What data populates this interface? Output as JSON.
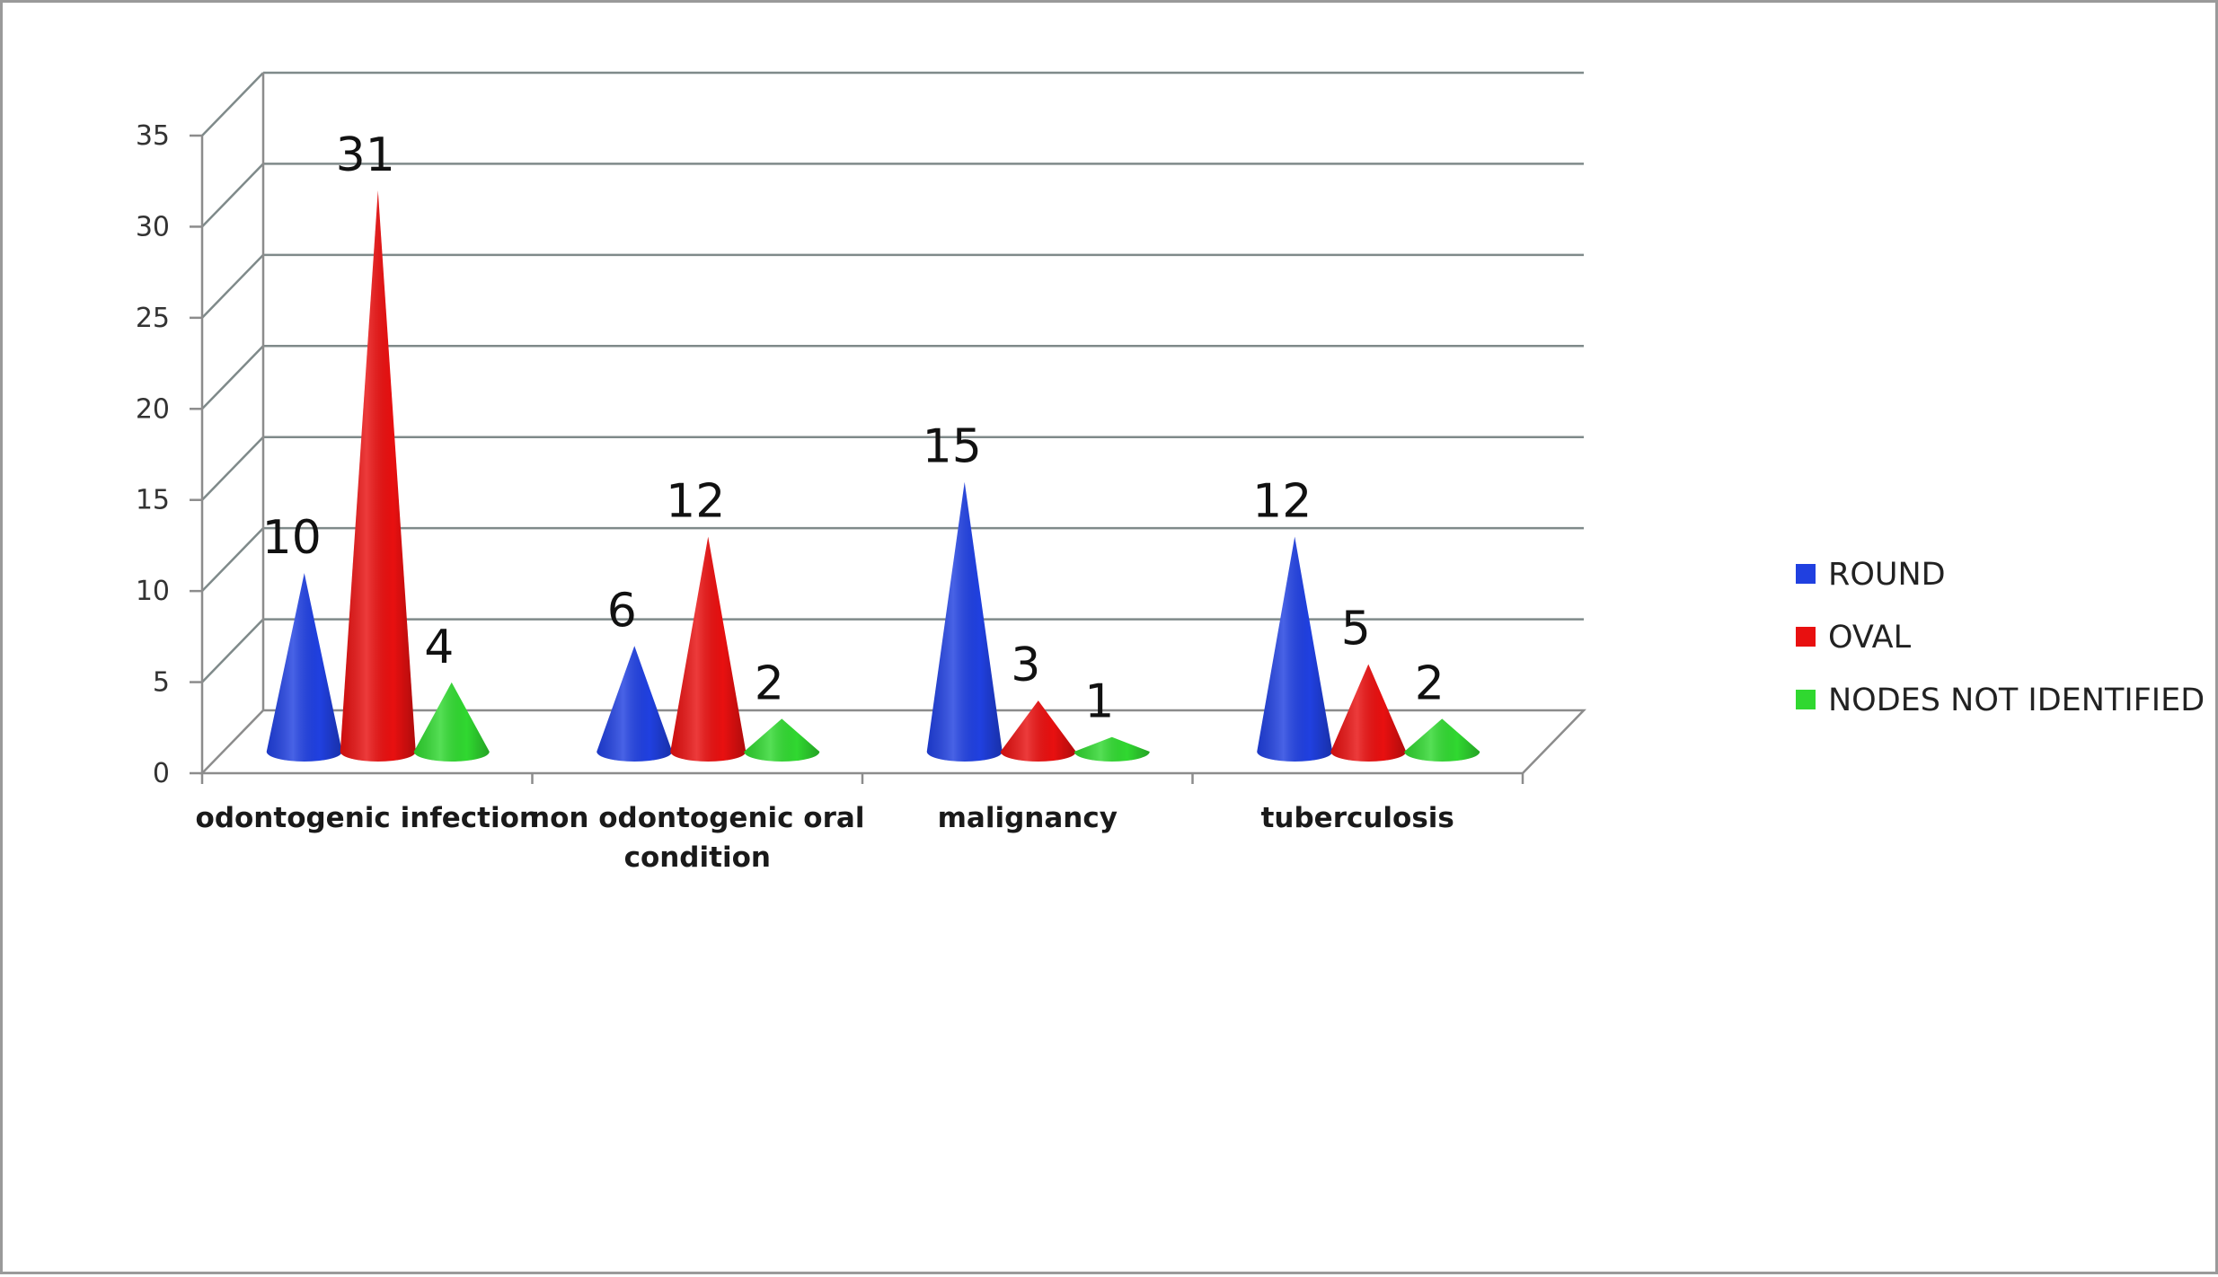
{
  "chart_data": {
    "type": "bar",
    "style": "3d-cone",
    "categories": [
      "odontogenic infection",
      "non odontogenic oral condition",
      "malignancy",
      "tuberculosis"
    ],
    "category_lines": [
      [
        "odontogenic infection"
      ],
      [
        "non odontogenic oral",
        "condition"
      ],
      [
        "malignancy"
      ],
      [
        "tuberculosis"
      ]
    ],
    "series": [
      {
        "name": "ROUND",
        "color": "#2040e0",
        "values": [
          10,
          6,
          15,
          12
        ]
      },
      {
        "name": "OVAL",
        "color": "#e81010",
        "values": [
          31,
          12,
          3,
          5
        ]
      },
      {
        "name": "NODES NOT IDENTIFIED",
        "color": "#30d830",
        "values": [
          4,
          2,
          1,
          2
        ]
      }
    ],
    "ylim": [
      0,
      35
    ],
    "yticks": [
      "0",
      "5",
      "10",
      "15",
      "20",
      "25",
      "30",
      "35"
    ],
    "grid": true,
    "legend": "right",
    "title": "",
    "xlabel": "",
    "ylabel": ""
  }
}
